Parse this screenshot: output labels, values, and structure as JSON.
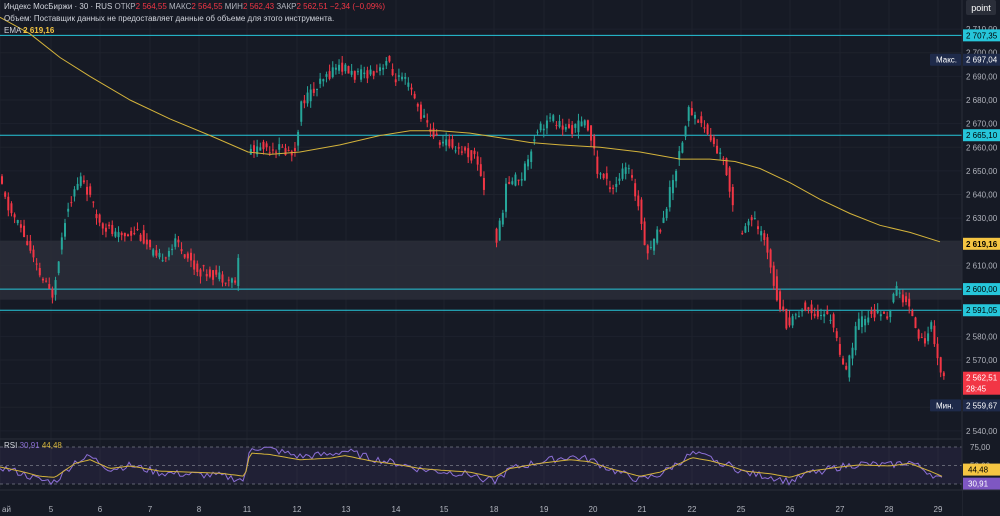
{
  "header": {
    "line1": {
      "instrument": "Индекс МосБиржи · 30 · RUS",
      "open_label": "ОТКР",
      "open": "2 564,55",
      "high_label": "МАКС",
      "high": "2 564,55",
      "low_label": "МИН",
      "low": "2 562,43",
      "close_label": "ЗАКР",
      "close": "2 562,51",
      "change": "−2,34 (−0,09%)"
    },
    "volume_note": "Объем: Поставщик данных не предоставляет данные об объеме для этого инструмента.",
    "ema_label": "EMA",
    "ema_value": "2 619,16"
  },
  "corner_button": "point",
  "colors": {
    "background": "#161a25",
    "up": "#26a69a",
    "down": "#f23645",
    "ema": "#d4b33b",
    "rsi": "#7e57c2",
    "rsi_ma": "#d4b33b",
    "hline": "#26c6da"
  },
  "price_axis": {
    "ticks": [
      "2 710,00",
      "2 700,00",
      "2 690,00",
      "2 680,00",
      "2 670,00",
      "2 660,00",
      "2 650,00",
      "2 640,00",
      "2 630,00",
      "2 620,00",
      "2 610,00",
      "2 600,00",
      "2 590,00",
      "2 580,00",
      "2 570,00",
      "2 560,00",
      "2 550,00",
      "2 540,00"
    ],
    "tags": [
      {
        "text": "2 707,35",
        "style": "cyan"
      },
      {
        "text": "Макс.",
        "style": "navy-label"
      },
      {
        "text": "2 697,04",
        "style": "navy"
      },
      {
        "text": "2 665,10",
        "style": "cyan"
      },
      {
        "text": "2 619,16",
        "style": "yellow"
      },
      {
        "text": "2 600,00",
        "style": "cyan"
      },
      {
        "text": "2 591,05",
        "style": "cyan"
      },
      {
        "text": "2 562,51",
        "style": "red"
      },
      {
        "text": "28:45",
        "style": "red-sub"
      },
      {
        "text": "Мин.",
        "style": "navy-label"
      },
      {
        "text": "2 559,67",
        "style": "navy"
      }
    ]
  },
  "rsi": {
    "label": "RSI",
    "value": "30,91",
    "ma_value": "44,48",
    "ticks": [
      "75,00",
      "50,00",
      "25,00"
    ],
    "tags": [
      {
        "text": "44,48",
        "style": "yellow"
      },
      {
        "text": "30,91",
        "style": "purple"
      }
    ]
  },
  "time_axis": {
    "labels": [
      "ай",
      "5",
      "6",
      "7",
      "8",
      "11",
      "12",
      "13",
      "14",
      "15",
      "18",
      "19",
      "20",
      "21",
      "22",
      "25",
      "26",
      "27",
      "28",
      "29"
    ]
  },
  "chart_data": {
    "type": "candlestick",
    "timeframe": "30",
    "levels": [
      2707.35,
      2665.1,
      2600.0,
      2591.05
    ],
    "ema_last": 2619.16,
    "last_close": 2562.51,
    "session_high": 2697.04,
    "session_low": 2559.67,
    "rsi_last": 30.91,
    "rsi_ma_last": 44.48,
    "ylim": [
      2537,
      2713
    ],
    "rsi_ylim": [
      0,
      100
    ]
  }
}
